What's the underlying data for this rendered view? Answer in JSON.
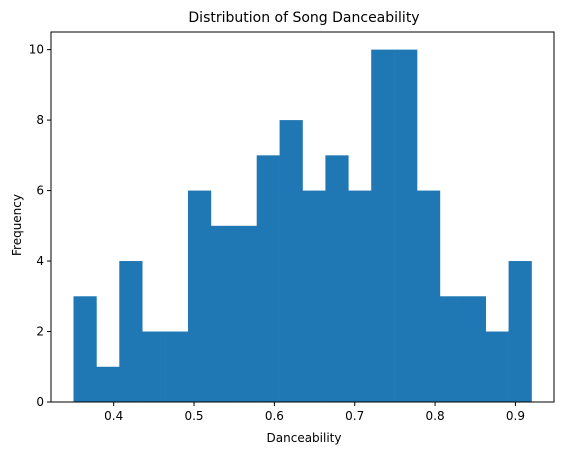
{
  "chart_data": {
    "type": "bar",
    "subtype": "histogram",
    "title": "Distribution of Song Danceability",
    "xlabel": "Danceability",
    "ylabel": "Frequency",
    "xlim": [
      0.322,
      0.948
    ],
    "ylim": [
      0,
      10.5
    ],
    "xticks": [
      0.4,
      0.5,
      0.6,
      0.7,
      0.8,
      0.9
    ],
    "xtick_labels": [
      "0.4",
      "0.5",
      "0.6",
      "0.7",
      "0.8",
      "0.9"
    ],
    "yticks": [
      0,
      2,
      4,
      6,
      8,
      10
    ],
    "ytick_labels": [
      "0",
      "2",
      "4",
      "6",
      "8",
      "10"
    ],
    "bin_edges": [
      0.35,
      0.3785,
      0.407,
      0.4355,
      0.464,
      0.4925,
      0.521,
      0.5495,
      0.578,
      0.6065,
      0.635,
      0.6635,
      0.692,
      0.7205,
      0.749,
      0.7775,
      0.806,
      0.8345,
      0.863,
      0.8915,
      0.92
    ],
    "values": [
      3,
      1,
      4,
      2,
      2,
      6,
      5,
      5,
      7,
      8,
      6,
      7,
      6,
      10,
      10,
      6,
      3,
      3,
      2,
      4
    ],
    "bar_color": "#1f77b4",
    "grid": false
  }
}
